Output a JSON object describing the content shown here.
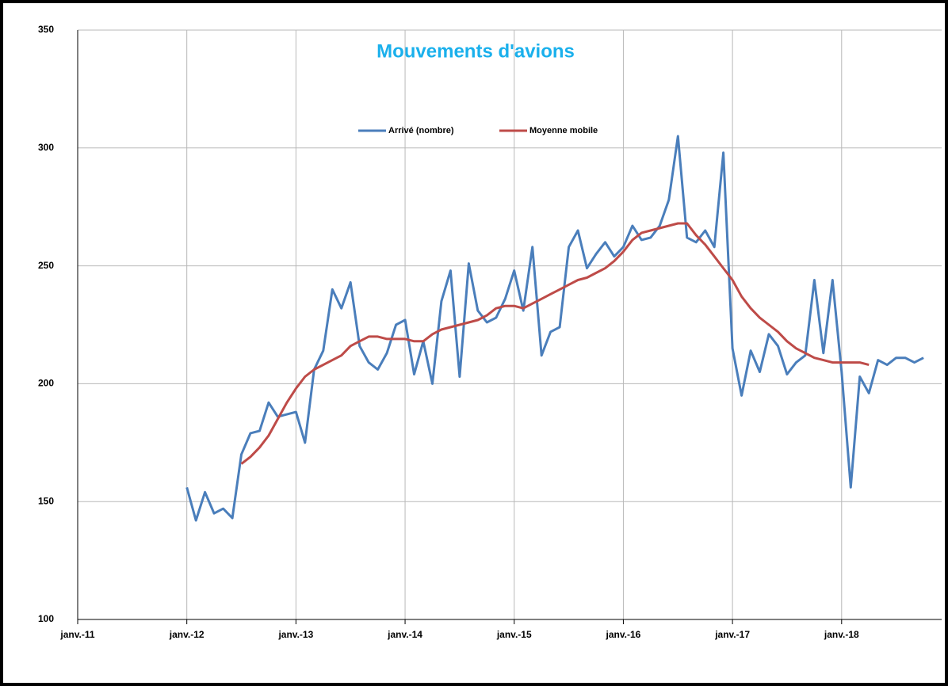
{
  "chart_data": {
    "type": "line",
    "title": "Mouvements d'avions",
    "x": [
      "2012-01",
      "2012-02",
      "2012-03",
      "2012-04",
      "2012-05",
      "2012-06",
      "2012-07",
      "2012-08",
      "2012-09",
      "2012-10",
      "2012-11",
      "2012-12",
      "2013-01",
      "2013-02",
      "2013-03",
      "2013-04",
      "2013-05",
      "2013-06",
      "2013-07",
      "2013-08",
      "2013-09",
      "2013-10",
      "2013-11",
      "2013-12",
      "2014-01",
      "2014-02",
      "2014-03",
      "2014-04",
      "2014-05",
      "2014-06",
      "2014-07",
      "2014-08",
      "2014-09",
      "2014-10",
      "2014-11",
      "2014-12",
      "2015-01",
      "2015-02",
      "2015-03",
      "2015-04",
      "2015-05",
      "2015-06",
      "2015-07",
      "2015-08",
      "2015-09",
      "2015-10",
      "2015-11",
      "2015-12",
      "2016-01",
      "2016-02",
      "2016-03",
      "2016-04",
      "2016-05",
      "2016-06",
      "2016-07",
      "2016-08",
      "2016-09",
      "2016-10",
      "2016-11",
      "2016-12",
      "2017-01",
      "2017-02",
      "2017-03",
      "2017-04",
      "2017-05",
      "2017-06",
      "2017-07",
      "2017-08",
      "2017-09",
      "2017-10",
      "2017-11",
      "2017-12",
      "2018-01",
      "2018-02",
      "2018-03",
      "2018-04",
      "2018-05",
      "2018-06",
      "2018-07",
      "2018-08",
      "2018-09",
      "2018-10"
    ],
    "series": [
      {
        "name": "Arrivé (nombre)",
        "color": "#4a7ebb",
        "values": [
          156,
          142,
          154,
          145,
          147,
          143,
          170,
          179,
          180,
          192,
          186,
          187,
          188,
          175,
          206,
          214,
          240,
          232,
          243,
          216,
          209,
          206,
          213,
          225,
          227,
          204,
          218,
          200,
          235,
          248,
          203,
          251,
          231,
          226,
          228,
          236,
          248,
          231,
          258,
          212,
          222,
          224,
          258,
          265,
          249,
          255,
          260,
          254,
          258,
          267,
          261,
          262,
          267,
          278,
          305,
          262,
          260,
          265,
          258,
          298,
          215,
          195,
          214,
          205,
          221,
          216,
          204,
          209,
          212,
          244,
          213,
          244,
          205,
          156,
          203,
          196,
          210,
          208,
          211,
          211,
          209,
          211
        ]
      },
      {
        "name": "Moyenne mobile",
        "color": "#be4b48",
        "values": [
          null,
          null,
          null,
          null,
          null,
          null,
          166,
          169,
          173,
          178,
          185,
          192,
          198,
          203,
          206,
          208,
          210,
          212,
          216,
          218,
          220,
          220,
          219,
          219,
          219,
          218,
          218,
          221,
          223,
          224,
          225,
          226,
          227,
          229,
          232,
          233,
          233,
          232,
          234,
          236,
          238,
          240,
          242,
          244,
          245,
          247,
          249,
          252,
          256,
          261,
          264,
          265,
          266,
          267,
          268,
          268,
          263,
          259,
          254,
          249,
          244,
          237,
          232,
          228,
          225,
          222,
          218,
          215,
          213,
          211,
          210,
          209,
          209,
          209,
          209,
          208,
          null,
          null,
          null,
          null,
          null,
          null
        ]
      }
    ],
    "xlim": [
      "2011-01",
      "2018-12"
    ],
    "xticks": [
      {
        "value": "2011-01",
        "label": "janv.-11"
      },
      {
        "value": "2012-01",
        "label": "janv.-12"
      },
      {
        "value": "2013-01",
        "label": "janv.-13"
      },
      {
        "value": "2014-01",
        "label": "janv.-14"
      },
      {
        "value": "2015-01",
        "label": "janv.-15"
      },
      {
        "value": "2016-01",
        "label": "janv.-16"
      },
      {
        "value": "2017-01",
        "label": "janv.-17"
      },
      {
        "value": "2018-01",
        "label": "janv.-18"
      }
    ],
    "ylim": [
      100,
      350
    ],
    "yticks": [
      100,
      150,
      200,
      250,
      300,
      350
    ],
    "grid": true,
    "legend": "top"
  }
}
